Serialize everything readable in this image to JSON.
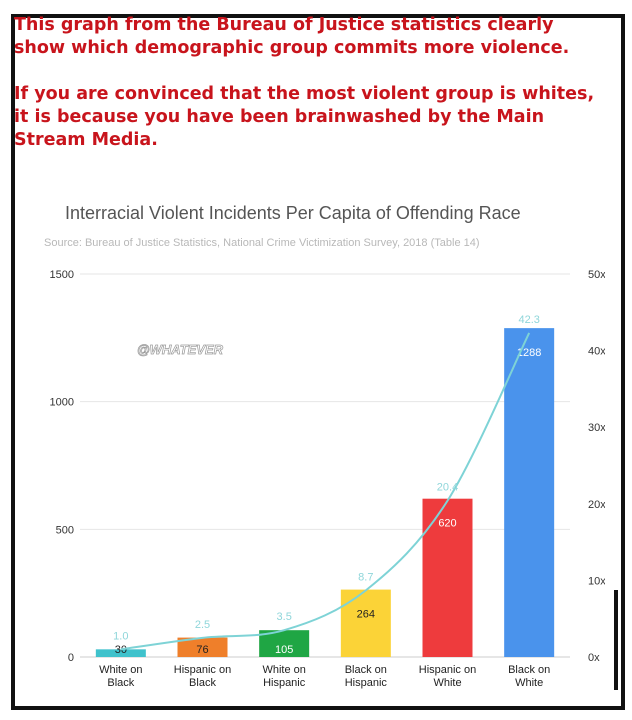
{
  "caption": {
    "paragraph1": "This graph from the Bureau of Justice statistics clearly show which demographic group commits more violence.",
    "paragraph2": "If you are convinced that the most violent group is whites, it is because you have been brainwashed by the Main Stream Media."
  },
  "watermark": "@WHATEVER",
  "colors": {
    "caption": "#c8141c",
    "line": "#7ed3d6",
    "grid": "#e6e6e6"
  },
  "chart_data": {
    "type": "bar",
    "title": "Interracial Violent Incidents Per Capita of Offending Race",
    "subtitle": "Source: Bureau of Justice Statistics, National Crime Victimization Survey, 2018 (Table 14)",
    "categories": [
      [
        "White on",
        "Black"
      ],
      [
        "Hispanic on",
        "Black"
      ],
      [
        "White on",
        "Hispanic"
      ],
      [
        "Black on",
        "Hispanic"
      ],
      [
        "Hispanic on",
        "White"
      ],
      [
        "Black on",
        "White"
      ]
    ],
    "series": [
      {
        "axis": "left",
        "values": [
          30,
          76,
          105,
          264,
          620,
          1288
        ],
        "labels": [
          "30",
          "76",
          "105",
          "264",
          "620",
          "1288"
        ],
        "colors": [
          "#3fc2cc",
          "#ef7f2a",
          "#1fa644",
          "#fbd337",
          "#ee3b3d",
          "#4a93ec"
        ],
        "label_colors": [
          "#222222",
          "#222222",
          "#ffffff",
          "#222222",
          "#ffffff",
          "#ffffff"
        ]
      },
      {
        "type": "line",
        "axis": "right",
        "values": [
          1.0,
          2.5,
          3.5,
          8.7,
          20.4,
          42.3
        ],
        "labels": [
          "1.0",
          "2.5",
          "3.5",
          "8.7",
          "20.4",
          "42.3"
        ]
      }
    ],
    "y_left": {
      "ylim": [
        0,
        1500
      ],
      "ticks": [
        0,
        500,
        1000,
        1500
      ],
      "tick_labels": [
        "0",
        "500",
        "1000",
        "1500"
      ]
    },
    "y_right": {
      "ylim": [
        0,
        50
      ],
      "ticks": [
        0,
        10,
        20,
        30,
        40,
        50
      ],
      "tick_labels": [
        "0x",
        "10x",
        "20x",
        "30x",
        "40x",
        "50x"
      ]
    },
    "grid": true
  }
}
